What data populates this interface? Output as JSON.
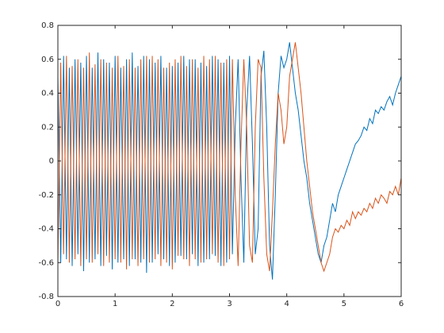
{
  "chart_data": {
    "type": "line",
    "x": [
      0,
      0.05,
      0.1,
      0.15,
      0.2,
      0.25,
      0.3,
      0.35,
      0.4,
      0.45,
      0.5,
      0.55,
      0.6,
      0.65,
      0.7,
      0.75,
      0.8,
      0.85,
      0.9,
      0.95,
      1,
      1.05,
      1.1,
      1.15,
      1.2,
      1.25,
      1.3,
      1.35,
      1.4,
      1.45,
      1.5,
      1.55,
      1.6,
      1.65,
      1.7,
      1.75,
      1.8,
      1.85,
      1.9,
      1.95,
      2,
      2.05,
      2.1,
      2.15,
      2.2,
      2.25,
      2.3,
      2.35,
      2.4,
      2.45,
      2.5,
      2.55,
      2.6,
      2.65,
      2.7,
      2.75,
      2.8,
      2.85,
      2.9,
      2.95,
      3,
      3.05,
      3.1,
      3.15,
      3.2,
      3.25,
      3.3,
      3.35,
      3.4,
      3.45,
      3.5,
      3.55,
      3.6,
      3.65,
      3.7,
      3.75,
      3.8,
      3.85,
      3.9,
      3.95,
      4,
      4.05,
      4.1,
      4.15,
      4.2,
      4.25,
      4.3,
      4.35,
      4.4,
      4.45,
      4.5,
      4.55,
      4.6,
      4.65,
      4.7,
      4.75,
      4.8,
      4.85,
      4.9,
      4.95,
      5,
      5.05,
      5.1,
      5.15,
      5.2,
      5.25,
      5.3,
      5.35,
      5.4,
      5.45,
      5.5,
      5.55,
      5.6,
      5.65,
      5.7,
      5.75,
      5.8,
      5.85,
      5.9,
      5.95,
      6
    ],
    "series": [
      {
        "color": "#0072bd",
        "values": [
          0.5,
          -0.6,
          0.62,
          -0.58,
          0.55,
          -0.62,
          0.6,
          -0.55,
          0.58,
          -0.65,
          0.62,
          -0.6,
          0.55,
          -0.58,
          0.64,
          -0.62,
          0.6,
          -0.56,
          0.58,
          -0.64,
          0.62,
          -0.6,
          0.55,
          -0.58,
          0.6,
          -0.62,
          0.64,
          -0.58,
          0.56,
          -0.6,
          0.62,
          -0.66,
          0.6,
          -0.6,
          0.58,
          -0.55,
          0.62,
          -0.58,
          0.55,
          -0.62,
          0.56,
          -0.6,
          0.58,
          -0.56,
          0.62,
          -0.58,
          0.6,
          -0.55,
          0.6,
          -0.62,
          0.58,
          -0.6,
          0.56,
          -0.58,
          0.62,
          -0.56,
          0.6,
          -0.62,
          0.58,
          -0.6,
          0.62,
          -0.55,
          0.2,
          0.6,
          -0.1,
          -0.6,
          0.3,
          0.62,
          0.1,
          -0.55,
          -0.4,
          0.5,
          0.65,
          0.2,
          -0.5,
          -0.7,
          -0.2,
          0.4,
          0.62,
          0.55,
          0.6,
          0.7,
          0.55,
          0.4,
          0.3,
          0.15,
          0,
          -0.1,
          -0.25,
          -0.35,
          -0.45,
          -0.55,
          -0.6,
          -0.5,
          -0.45,
          -0.35,
          -0.25,
          -0.3,
          -0.2,
          -0.15,
          -0.1,
          -0.05,
          0,
          0.05,
          0.1,
          0.12,
          0.15,
          0.2,
          0.18,
          0.25,
          0.22,
          0.3,
          0.28,
          0.32,
          0.3,
          0.35,
          0.38,
          0.33,
          0.4,
          0.45,
          0.5
        ]
      },
      {
        "color": "#d95319",
        "values": [
          -0.6,
          0.58,
          -0.55,
          0.62,
          -0.6,
          0.56,
          -0.58,
          0.6,
          -0.62,
          0.55,
          -0.58,
          0.64,
          -0.6,
          0.57,
          -0.55,
          0.6,
          -0.62,
          0.58,
          -0.6,
          0.55,
          -0.58,
          0.62,
          -0.6,
          0.56,
          -0.64,
          0.6,
          -0.58,
          0.55,
          -0.62,
          0.6,
          -0.58,
          0.62,
          -0.6,
          0.62,
          -0.58,
          0.6,
          -0.62,
          0.55,
          -0.6,
          0.58,
          -0.64,
          0.6,
          -0.56,
          0.62,
          -0.58,
          0.56,
          -0.62,
          0.6,
          -0.58,
          0.55,
          -0.6,
          0.62,
          -0.58,
          0.6,
          -0.55,
          0.62,
          -0.6,
          0.58,
          -0.62,
          0.6,
          -0.58,
          0.6,
          -0.2,
          -0.62,
          0.1,
          0.6,
          0.2,
          -0.5,
          -0.6,
          0.2,
          0.6,
          0.55,
          -0.1,
          -0.55,
          -0.65,
          -0.3,
          0.1,
          0.4,
          0.3,
          0.1,
          0.2,
          0.5,
          0.6,
          0.7,
          0.55,
          0.4,
          0.2,
          0,
          -0.15,
          -0.3,
          -0.4,
          -0.5,
          -0.6,
          -0.65,
          -0.6,
          -0.55,
          -0.45,
          -0.4,
          -0.42,
          -0.38,
          -0.4,
          -0.35,
          -0.38,
          -0.3,
          -0.34,
          -0.3,
          -0.32,
          -0.28,
          -0.3,
          -0.25,
          -0.28,
          -0.22,
          -0.25,
          -0.2,
          -0.22,
          -0.25,
          -0.18,
          -0.2,
          -0.15,
          -0.2,
          -0.1
        ]
      }
    ],
    "xlim": [
      0,
      6
    ],
    "xticks": [
      0,
      1,
      2,
      3,
      4,
      5,
      6
    ],
    "ylim": [
      -0.8,
      0.8
    ],
    "yticks": [
      -0.8,
      -0.6,
      -0.4,
      -0.2,
      0,
      0.2,
      0.4,
      0.6,
      0.8
    ],
    "grid": false
  }
}
